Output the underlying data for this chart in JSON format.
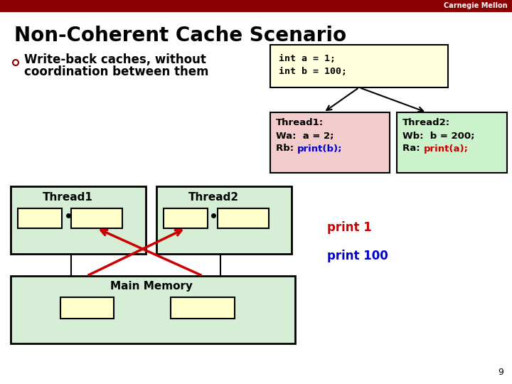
{
  "title": "Non-Coherent Cache Scenario",
  "header_color": "#8B0000",
  "header_text": "Carnegie Mellon",
  "bg_color": "#ffffff",
  "bullet_text_line1": "Write-back caches, without",
  "bullet_text_line2": "coordination between them",
  "code_box_color": "#ffffdd",
  "thread1_box_color": "#f2cccc",
  "thread2_box_color": "#ccf2cc",
  "thread1_label": "Thread1:",
  "thread1_line1": "Wa:  a = 2;",
  "thread1_line2_prefix": "Rb:  ",
  "thread1_line2_colored": "print(b);",
  "thread1_colored_color": "#0000cc",
  "thread2_label": "Thread2:",
  "thread2_line1": "Wb:  b = 200;",
  "thread2_line2_prefix": "Ra:  ",
  "thread2_line2_colored": "print(a);",
  "thread2_colored_color": "#cc0000",
  "cache_bg_color": "#d6eed6",
  "cache_border_color": "#000000",
  "mem_bg_color": "#d6eed6",
  "mem_border_color": "#000000",
  "cell_bg_color": "#ffffcc",
  "cell_border_color": "#000000",
  "arrow_color": "#cc0000",
  "print1_text": "print 1",
  "print1_color": "#cc0000",
  "print100_text": "print 100",
  "print100_color": "#0000cc",
  "page_number": "9"
}
